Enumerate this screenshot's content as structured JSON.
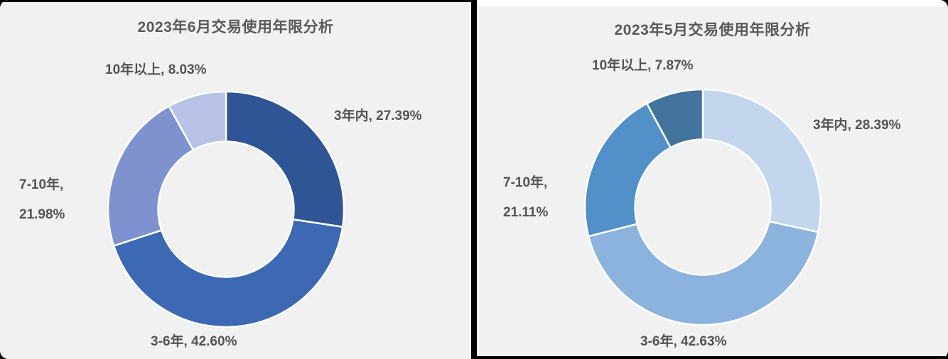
{
  "page": {
    "background": "#f1f1f2",
    "divider_color": "#000000",
    "text_color": "#545454"
  },
  "chart_data": [
    {
      "type": "pie",
      "subtype": "donut",
      "title": "2023年6月交易使用年限分析",
      "categories": [
        "3年内",
        "3-6年",
        "7-10年",
        "10年以上"
      ],
      "values": [
        27.39,
        42.6,
        21.98,
        8.03
      ],
      "unit": "%",
      "colors": [
        "#2f5597",
        "#3c68b4",
        "#7e92d0",
        "#b7c2e6"
      ],
      "start_angle_deg": 0,
      "direction": "clockwise",
      "inner_radius_ratio": 0.575,
      "legend": "none",
      "labels": {
        "first": "3年内, 27.39%",
        "second": "3-6年, 42.60%",
        "third_line1": "7-10年,",
        "third_line2": "21.98%",
        "fourth": "10年以上, 8.03%"
      }
    },
    {
      "type": "pie",
      "subtype": "donut",
      "title": "2023年5月交易使用年限分析",
      "categories": [
        "3年内",
        "3-6年",
        "7-10年",
        "10年以上"
      ],
      "values": [
        28.39,
        42.63,
        21.11,
        7.87
      ],
      "unit": "%",
      "colors": [
        "#c3d6ed",
        "#8bb3dd",
        "#5190c8",
        "#42739d"
      ],
      "start_angle_deg": 0,
      "direction": "clockwise",
      "inner_radius_ratio": 0.575,
      "legend": "none",
      "labels": {
        "first": "3年内, 28.39%",
        "second": "3-6年, 42.63%",
        "third_line1": "7-10年,",
        "third_line2": "21.11%",
        "fourth": "10年以上, 7.87%"
      }
    }
  ]
}
